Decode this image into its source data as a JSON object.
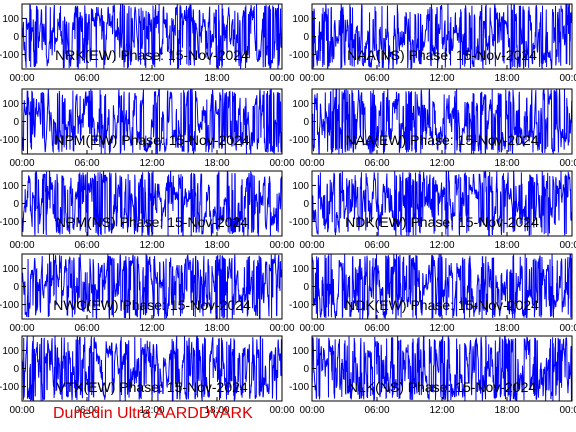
{
  "footer": "Dunedin Ultra AARDDVARK",
  "colors": {
    "trace": "#0000ff",
    "frame": "#000000",
    "background": "#ffffff",
    "footer": "#e00000"
  },
  "chart_data": [
    {
      "type": "line",
      "title": "NRK(EW) Phase: 15-Nov-2024",
      "ylim": [
        -180,
        180
      ],
      "yticks": [
        100,
        0,
        -100
      ],
      "xlim": [
        "00:00",
        "24:00"
      ],
      "xticks": [
        "00:00",
        "06:00",
        "12:00",
        "18:00",
        "00:00"
      ],
      "grid": false
    },
    {
      "type": "line",
      "title": "NAA(NS) Phase: 15-Nov-2024",
      "ylim": [
        -180,
        180
      ],
      "yticks": [
        100,
        0,
        -100
      ],
      "xlim": [
        "00:00",
        "24:00"
      ],
      "xticks": [
        "00:00",
        "06:00",
        "12:00",
        "18:00",
        "00:00"
      ],
      "grid": false
    },
    {
      "type": "line",
      "title": "NPM(EW) Phase: 15-Nov-2024",
      "ylim": [
        -180,
        180
      ],
      "yticks": [
        100,
        0,
        -100
      ],
      "xlim": [
        "00:00",
        "24:00"
      ],
      "xticks": [
        "00:00",
        "06:00",
        "12:00",
        "18:00",
        "00:00"
      ],
      "grid": false
    },
    {
      "type": "line",
      "title": "NAA(EW) Phase: 15-Nov-2024",
      "ylim": [
        -180,
        180
      ],
      "yticks": [
        100,
        0,
        -100
      ],
      "xlim": [
        "00:00",
        "24:00"
      ],
      "xticks": [
        "00:00",
        "06:00",
        "12:00",
        "18:00",
        "00:00"
      ],
      "grid": false
    },
    {
      "type": "line",
      "title": "NPM(NS) Phase: 15-Nov-2024",
      "ylim": [
        -180,
        180
      ],
      "yticks": [
        100,
        0,
        -100
      ],
      "xlim": [
        "00:00",
        "24:00"
      ],
      "xticks": [
        "00:00",
        "06:00",
        "12:00",
        "18:00",
        "00:00"
      ],
      "grid": false
    },
    {
      "type": "line",
      "title": "NDK(EW) Phase: 15-Nov-2024",
      "ylim": [
        -180,
        180
      ],
      "yticks": [
        100,
        0,
        -100
      ],
      "xlim": [
        "00:00",
        "24:00"
      ],
      "xticks": [
        "00:00",
        "06:00",
        "12:00",
        "18:00",
        "00:00"
      ],
      "grid": false
    },
    {
      "type": "line",
      "title": "NWC(EW) Phase: 15-Nov-2024",
      "ylim": [
        -180,
        180
      ],
      "yticks": [
        100,
        0,
        -100
      ],
      "xlim": [
        "00:00",
        "24:00"
      ],
      "xticks": [
        "00:00",
        "06:00",
        "12:00",
        "18:00",
        "00:00"
      ],
      "grid": false
    },
    {
      "type": "line",
      "title": "NDK(EW) Phase: 15-Nov-2024",
      "ylim": [
        -180,
        180
      ],
      "yticks": [
        100,
        0,
        -100
      ],
      "xlim": [
        "00:00",
        "24:00"
      ],
      "xticks": [
        "00:00",
        "06:00",
        "12:00",
        "18:00",
        "00:00"
      ],
      "grid": false
    },
    {
      "type": "line",
      "title": "VTX(EW) Phase: 15-Nov-2024",
      "ylim": [
        -180,
        180
      ],
      "yticks": [
        100,
        0,
        -100
      ],
      "xlim": [
        "00:00",
        "24:00"
      ],
      "xticks": [
        "00:00",
        "06:00",
        "12:00",
        "18:00",
        "00:00"
      ],
      "grid": false
    },
    {
      "type": "line",
      "title": "NLK(NS) Phase: 15-Nov-2024",
      "ylim": [
        -180,
        180
      ],
      "yticks": [
        100,
        0,
        -100
      ],
      "xlim": [
        "00:00",
        "24:00"
      ],
      "xticks": [
        "00:00",
        "06:00",
        "12:00",
        "18:00",
        "00:00"
      ],
      "grid": false
    }
  ]
}
